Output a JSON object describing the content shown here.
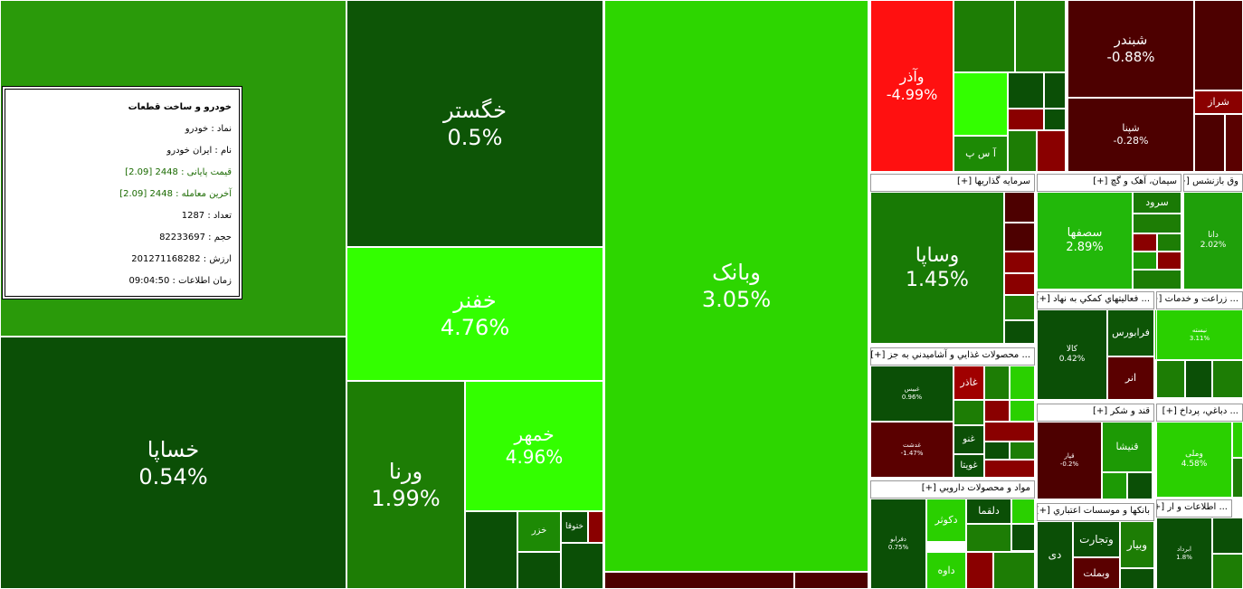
{
  "tooltip": {
    "title": "خودرو و ساخت قطعات",
    "lines": [
      "نماد : خودرو",
      "نام : ایران خودرو",
      "قیمت پایانی : 2448 [2.09]",
      "آخرین معامله : 2448 [2.09]",
      "تعداد : 1287",
      "حجم : 82233697",
      "ارزش : 201271168282",
      "زمان اطلاعات : 09:04:50"
    ]
  },
  "tiles": [
    {
      "symbol": "خساپا",
      "change": "0.54%"
    },
    {
      "symbol": "خگستر",
      "change": "0.5%"
    },
    {
      "symbol": "خفنر",
      "change": "4.76%"
    },
    {
      "symbol": "ورنا",
      "change": "1.99%"
    },
    {
      "symbol": "خمهر",
      "change": "4.96%"
    },
    {
      "symbol": "وبانک",
      "change": "3.05%"
    },
    {
      "symbol": "وآذر",
      "change": "-4.99%"
    },
    {
      "symbol": "شبندر",
      "change": "-0.88%"
    },
    {
      "symbol": "شپنا",
      "change": "-0.28%"
    },
    {
      "symbol": "خزر"
    },
    {
      "symbol": "ختوقا"
    },
    {
      "symbol": "شراز"
    },
    {
      "symbol": "آ س پ"
    }
  ],
  "sections": [
    {
      "header": "سرمايه گذاريها [+]",
      "tiles": [
        {
          "symbol": "وساپا",
          "change": "1.45%"
        }
      ]
    },
    {
      "header": "سيمان، آهک و گچ [+]",
      "tiles": [
        {
          "symbol": "سصفها",
          "change": "2.89%"
        },
        {
          "symbol": "سرود"
        }
      ]
    },
    {
      "header": "وق بازنشس [+]",
      "tiles": [
        {
          "symbol": "دانا",
          "change": "2.02%"
        }
      ]
    },
    {
      "header": "... فعاليتهاي کمکي به نهاد [+]",
      "tiles": [
        {
          "symbol": "کالا",
          "change": "0.42%"
        },
        {
          "symbol": "فرابورس"
        },
        {
          "symbol": "انر"
        }
      ]
    },
    {
      "header": "... زراعت و خدمات [+]",
      "tiles": [
        {
          "symbol": "نیسته",
          "change": "3.11%"
        }
      ]
    },
    {
      "header": "... محصولات غذايي و آشاميدني به جز [+]",
      "tiles": [
        {
          "symbol": "غبیس",
          "change": "0.96%"
        },
        {
          "symbol": "غدشت",
          "change": "-1.47%"
        },
        {
          "symbol": "غاذر"
        },
        {
          "symbol": "غنو"
        },
        {
          "symbol": "غویتا"
        }
      ]
    },
    {
      "header": "قند و شکر [+]",
      "tiles": [
        {
          "symbol": "قپار",
          "change": "-0.2%"
        },
        {
          "symbol": "قنیشا"
        }
      ]
    },
    {
      "header": "... دباغي، پرداخ [+]",
      "tiles": [
        {
          "symbol": "وملی",
          "change": "4.58%"
        }
      ]
    },
    {
      "header": "مواد و محصولات دارويي [+]",
      "tiles": [
        {
          "symbol": "دفرابو",
          "change": "0.75%"
        },
        {
          "symbol": "دکوثر"
        },
        {
          "symbol": "دلقما"
        },
        {
          "symbol": "داوه"
        }
      ]
    },
    {
      "header": "بانکها و موسسات اعتباري [+]",
      "tiles": [
        {
          "symbol": "دی"
        },
        {
          "symbol": "وتجارت"
        },
        {
          "symbol": "وبیار"
        },
        {
          "symbol": "وبملت"
        }
      ]
    },
    {
      "header": "... اطلاعات و ار [+]",
      "tiles": [
        {
          "symbol": "ابرداد",
          "change": "1.8%"
        }
      ]
    }
  ]
}
